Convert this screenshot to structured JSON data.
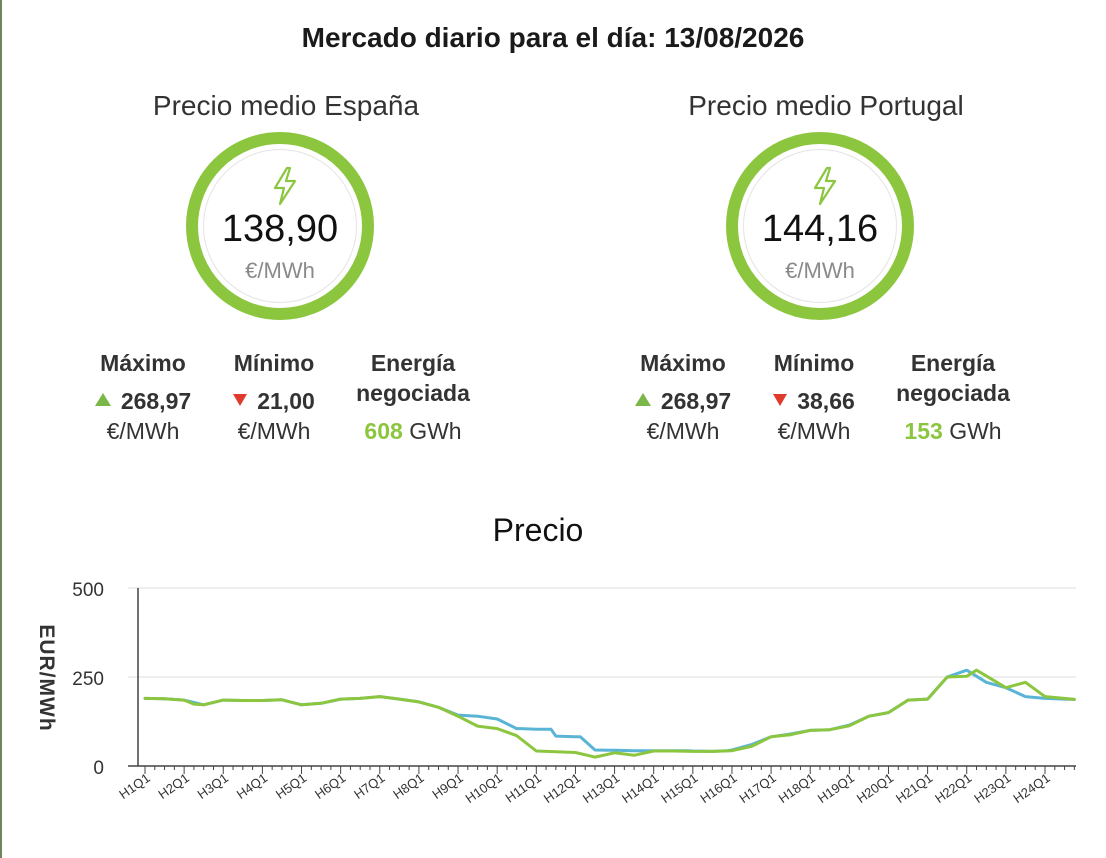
{
  "title": "Mercado diario para el día: 13/08/2026",
  "panels": [
    {
      "name": "Precio medio España",
      "price": "138,90",
      "unit": "€/MWh",
      "max_label": "Máximo",
      "max_value": "268,97",
      "max_unit": "€/MWh",
      "min_label": "Mínimo",
      "min_value": "21,00",
      "min_unit": "€/MWh",
      "energy_label_1": "Energía",
      "energy_label_2": "negociada",
      "energy_value": "608",
      "energy_unit": "GWh"
    },
    {
      "name": "Precio medio Portugal",
      "price": "144,16",
      "unit": "€/MWh",
      "max_label": "Máximo",
      "max_value": "268,97",
      "max_unit": "€/MWh",
      "min_label": "Mínimo",
      "min_value": "38,66",
      "min_unit": "€/MWh",
      "energy_label_1": "Energía",
      "energy_label_2": "negociada",
      "energy_value": "153",
      "energy_unit": "GWh"
    }
  ],
  "icons": {
    "price": "lightning-bolt-icon",
    "max": "triangle-up-icon",
    "min": "triangle-down-icon"
  },
  "colors": {
    "accent": "#8cc63f",
    "portugal": "#5ab4d6",
    "spain": "#8cc63f",
    "down": "#e03a2f",
    "up": "#7ab648"
  },
  "chart_data": {
    "type": "line",
    "title": "Precio",
    "ylabel": "EUR/MWh",
    "xlabel": "",
    "ylim": [
      0,
      500
    ],
    "yticks": [
      0,
      250,
      500
    ],
    "grid": true,
    "xtick_labels": [
      "H1Q1",
      "H2Q1",
      "H3Q1",
      "H4Q1",
      "H5Q1",
      "H6Q1",
      "H7Q1",
      "H8Q1",
      "H9Q1",
      "H10Q1",
      "H11Q1",
      "H12Q1",
      "H13Q1",
      "H14Q1",
      "H15Q1",
      "H16Q1",
      "H17Q1",
      "H18Q1",
      "H19Q1",
      "H20Q1",
      "H21Q1",
      "H22Q1",
      "H23Q1",
      "H24Q1"
    ],
    "x_points_per_hour": 4,
    "series": [
      {
        "key": "portugal",
        "color": "#5ab4d6",
        "x": [
          0,
          2,
          4,
          6,
          8,
          10,
          12,
          14,
          16,
          18,
          20,
          22,
          24,
          26,
          28,
          30,
          32,
          34,
          36,
          38,
          38.5,
          40,
          41.5,
          42,
          44,
          44.5,
          46,
          47.5,
          48,
          50,
          51.5,
          52,
          54,
          55.5,
          56,
          58,
          59.5,
          60,
          62,
          64,
          66,
          68,
          70,
          72,
          74,
          76,
          78,
          80,
          82,
          84,
          86,
          88,
          90,
          92,
          94,
          95
        ],
        "values": [
          190,
          189,
          185,
          172,
          185,
          184,
          184,
          186,
          172,
          176,
          188,
          190,
          195,
          188,
          180,
          165,
          143,
          140,
          132,
          105,
          105,
          103,
          103,
          84,
          82,
          82,
          45,
          44,
          44,
          43,
          43,
          43,
          43,
          43,
          42,
          41,
          43,
          45,
          60,
          82,
          90,
          100,
          102,
          115,
          140,
          150,
          185,
          188,
          250,
          269,
          235,
          220,
          195,
          190,
          188,
          187
        ]
      },
      {
        "key": "spain",
        "color": "#8cc63f",
        "x": [
          0,
          2,
          4,
          5,
          6,
          8,
          10,
          12,
          14,
          16,
          18,
          20,
          22,
          24,
          26,
          28,
          30,
          32,
          34,
          36,
          38,
          40,
          42,
          44,
          46,
          48,
          50,
          52,
          54,
          56,
          58,
          60,
          62,
          64,
          66,
          68,
          70,
          72,
          74,
          76,
          78,
          80,
          82,
          84,
          85,
          86,
          88,
          90,
          92,
          94,
          95
        ],
        "values": [
          190,
          189,
          185,
          174,
          172,
          185,
          184,
          184,
          186,
          172,
          176,
          188,
          190,
          195,
          188,
          180,
          165,
          140,
          112,
          105,
          85,
          42,
          40,
          38,
          25,
          37,
          30,
          42,
          42,
          41,
          41,
          43,
          55,
          82,
          88,
          100,
          102,
          113,
          140,
          150,
          185,
          188,
          250,
          252,
          269,
          253,
          220,
          235,
          195,
          190,
          187
        ]
      }
    ]
  }
}
